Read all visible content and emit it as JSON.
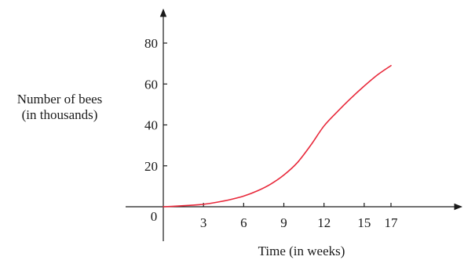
{
  "chart_data": {
    "type": "line",
    "xlabel": "Time (in weeks)",
    "ylabel": [
      "Number of bees",
      "(in thousands)"
    ],
    "origin_label": "0",
    "x_ticks": [
      3,
      6,
      9,
      12,
      15,
      17
    ],
    "y_ticks": [
      20,
      40,
      60,
      80
    ],
    "xlim": [
      0,
      17
    ],
    "ylim": [
      0,
      80
    ],
    "grid": false,
    "line_color": "#e8283a",
    "axis_color": "#1a1a1a",
    "series": [
      {
        "x": [
          0,
          1,
          2,
          3,
          4,
          5,
          6,
          7,
          8,
          9,
          10,
          11,
          12,
          13,
          14,
          15,
          16,
          17
        ],
        "y": [
          0,
          0.3,
          0.7,
          1.2,
          2.2,
          3.5,
          5.2,
          7.7,
          11,
          15.5,
          21.5,
          30,
          39.5,
          46.5,
          53,
          59,
          64.5,
          69
        ]
      }
    ]
  }
}
